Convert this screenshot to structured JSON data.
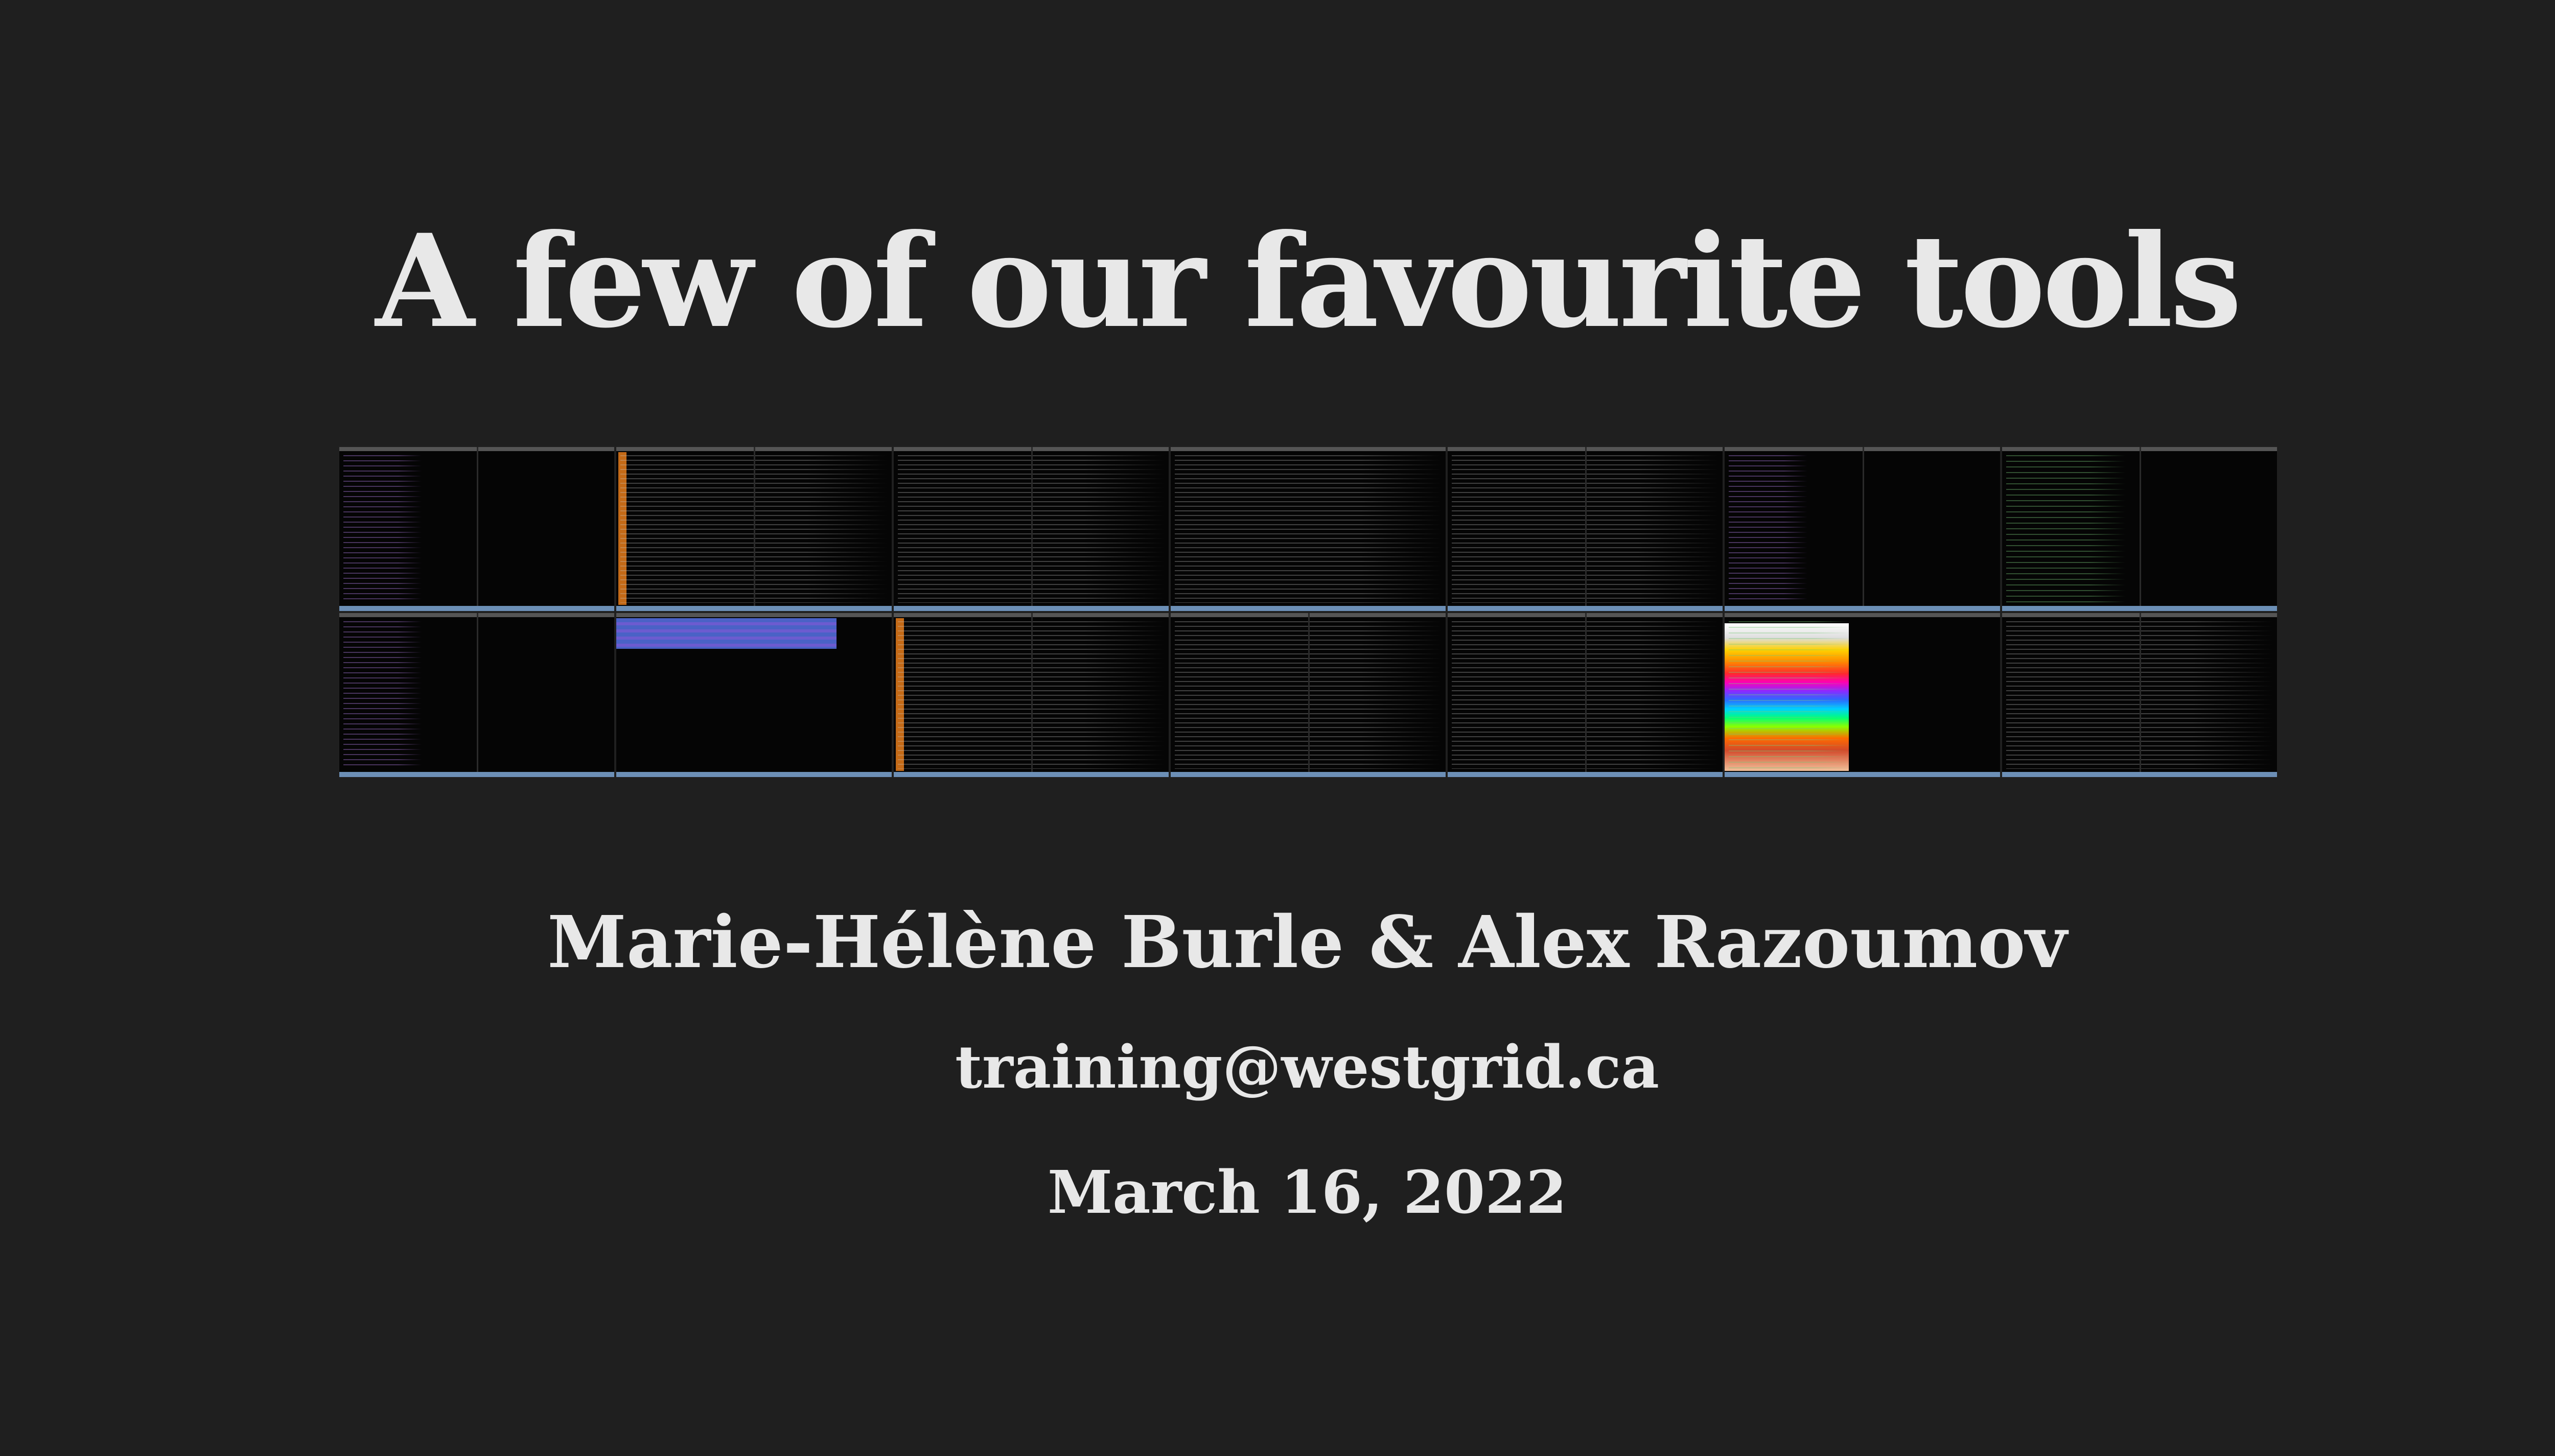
{
  "slide": {
    "title": "A few of our favourite tools",
    "authors": "Marie-Hélène Burle & Alex Razoumov",
    "email": "training@westgrid.ca",
    "date": "March 16, 2022"
  },
  "colors": {
    "background": "#1f1f1f",
    "text": "#e8e8e8",
    "terminal_background": "#050505",
    "statusbar_blue": "#6c8fb6",
    "accent_orange": "#c46a17"
  },
  "screenshot_collage": {
    "description_hidden": "",
    "rows": 2,
    "tiles_per_row": 7
  }
}
